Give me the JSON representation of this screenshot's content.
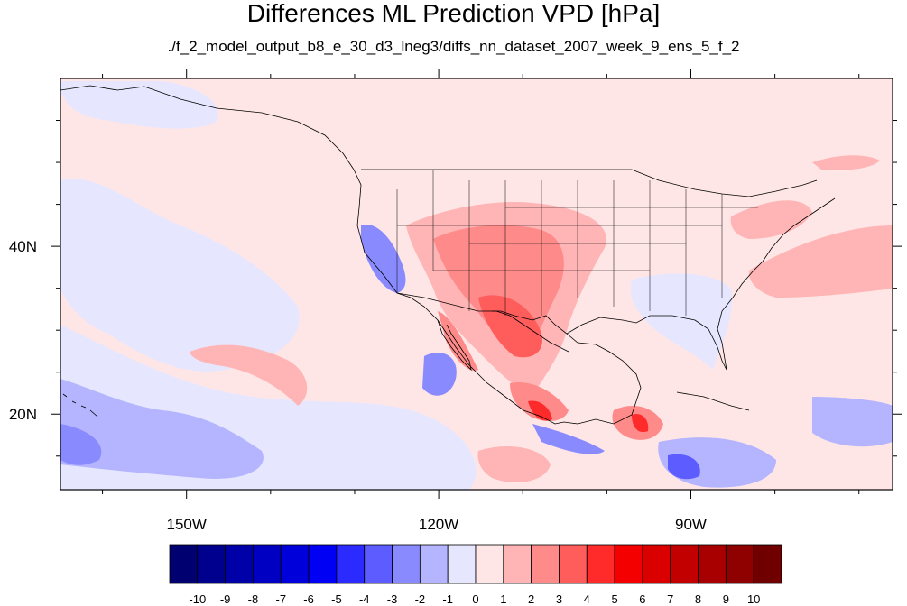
{
  "chart_data": {
    "type": "heatmap",
    "title": "Differences ML Prediction VPD [hPa]",
    "subtitle": "./f_2_model_output_b8_e_30_d3_lneg3/diffs_nn_dataset_2007_week_9_ens_5_f_2",
    "xlim": [
      -165,
      -66
    ],
    "ylim": [
      11,
      60
    ],
    "x_ticks": [
      {
        "value": -150,
        "label": "150W"
      },
      {
        "value": -120,
        "label": "120W"
      },
      {
        "value": -90,
        "label": "90W"
      }
    ],
    "y_ticks": [
      {
        "value": 40,
        "label": "40N"
      },
      {
        "value": 20,
        "label": "20N"
      }
    ],
    "colorbar": {
      "levels": [
        "-10",
        "-9",
        "-8",
        "-7",
        "-6",
        "-5",
        "-4",
        "-3",
        "-2",
        "-1",
        "0",
        "1",
        "2",
        "3",
        "4",
        "5",
        "6",
        "7",
        "8",
        "9",
        "10"
      ],
      "colors": [
        "#000070",
        "#00008f",
        "#0000a8",
        "#0000c2",
        "#0000da",
        "#0000f5",
        "#2b2bff",
        "#5c5cff",
        "#8a8aff",
        "#b5b5ff",
        "#e6e6ff",
        "#ffe6e6",
        "#ffb5b5",
        "#ff8a8a",
        "#ff5c5c",
        "#ff2b2b",
        "#f50000",
        "#da0000",
        "#c20000",
        "#a80000",
        "#8f0000",
        "#700000"
      ]
    },
    "grid": false,
    "legend_placement": "bottom"
  }
}
